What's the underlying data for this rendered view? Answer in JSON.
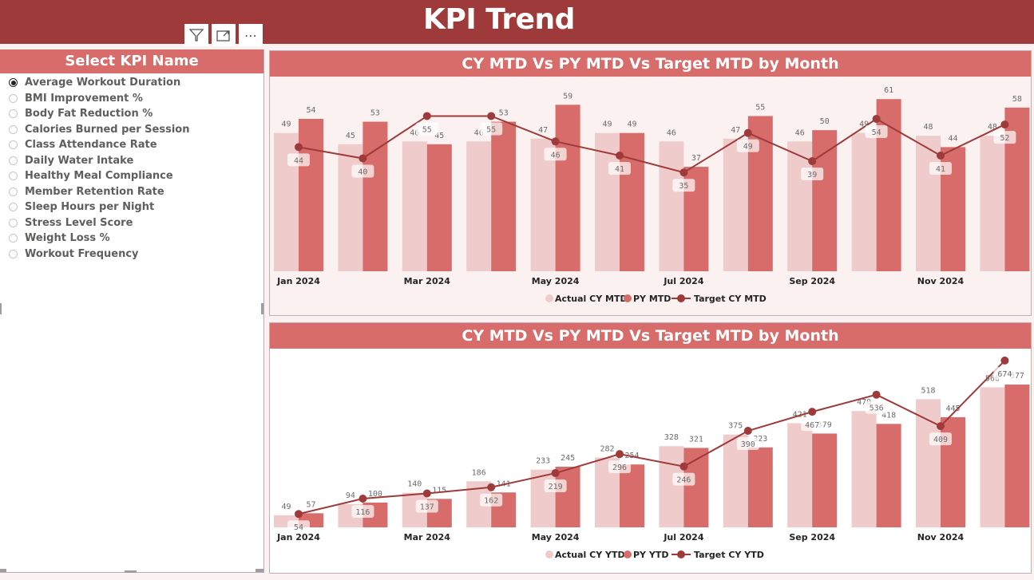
{
  "page": {
    "title": "KPI Trend"
  },
  "toolbar": {
    "icons": [
      "filter-icon",
      "focus-mode-icon",
      "more-options-icon"
    ],
    "more_label": "⋯"
  },
  "slicer": {
    "title": "Select KPI Name",
    "selected": "Average Workout Duration",
    "items": [
      "Average Workout Duration",
      "BMI Improvement %",
      "Body Fat Reduction %",
      "Calories Burned per Session",
      "Class Attendance Rate",
      "Daily Water Intake",
      "Healthy Meal Compliance",
      "Member Retention Rate",
      "Sleep Hours per Night",
      "Stress Level Score",
      "Weight Loss %",
      "Workout Frequency"
    ]
  },
  "colors": {
    "header": "#9e3a3a",
    "title_band": "#d86c6a",
    "actual": "#f0cbcb",
    "py": "#d86c6a",
    "target": "#9e3a3a"
  },
  "chart_data": [
    {
      "type": "bar",
      "title": "CY MTD Vs PY MTD Vs Target MTD by Month",
      "categories": [
        "Jan 2024",
        "Feb 2024",
        "Mar 2024",
        "Apr 2024",
        "May 2024",
        "Jun 2024",
        "Jul 2024",
        "Aug 2024",
        "Sep 2024",
        "Oct 2024",
        "Nov 2024",
        "Dec 2024"
      ],
      "tick_labels": [
        "Jan 2024",
        "",
        "Mar 2024",
        "",
        "May 2024",
        "",
        "Jul 2024",
        "",
        "Sep 2024",
        "",
        "Nov 2024",
        ""
      ],
      "series": [
        {
          "name": "Actual CY MTD",
          "kind": "bar",
          "values": [
            49,
            45,
            46,
            46,
            47,
            49,
            46,
            47,
            46,
            49,
            48,
            48
          ]
        },
        {
          "name": "PY MTD",
          "kind": "bar",
          "values": [
            54,
            53,
            45,
            53,
            59,
            49,
            37,
            55,
            50,
            61,
            44,
            58
          ]
        },
        {
          "name": "Target CY MTD",
          "kind": "line",
          "values": [
            44,
            40,
            55,
            55,
            46,
            41,
            35,
            49,
            39,
            54,
            41,
            52
          ]
        }
      ],
      "ylim": [
        0,
        54
      ],
      "legend": "bottom-center",
      "grid": false
    },
    {
      "type": "bar",
      "title": "CY MTD Vs PY MTD Vs Target MTD by Month",
      "categories": [
        "Jan 2024",
        "Feb 2024",
        "Mar 2024",
        "Apr 2024",
        "May 2024",
        "Jun 2024",
        "Jul 2024",
        "Aug 2024",
        "Sep 2024",
        "Oct 2024",
        "Nov 2024",
        "Dec 2024"
      ],
      "tick_labels": [
        "Jan 2024",
        "",
        "Mar 2024",
        "",
        "May 2024",
        "",
        "Jul 2024",
        "",
        "Sep 2024",
        "",
        "Nov 2024",
        ""
      ],
      "series": [
        {
          "name": "Actual CY YTD",
          "kind": "bar",
          "values": [
            49,
            94,
            140,
            186,
            233,
            282,
            328,
            375,
            421,
            470,
            518,
            566
          ]
        },
        {
          "name": "PY YTD",
          "kind": "bar",
          "values": [
            57,
            100,
            115,
            141,
            245,
            254,
            321,
            323,
            379,
            418,
            445,
            577
          ]
        },
        {
          "name": "Target CY YTD",
          "kind": "line",
          "values": [
            54,
            116,
            137,
            162,
            219,
            296,
            246,
            390,
            467,
            536,
            409,
            674
          ]
        }
      ],
      "ylim": [
        0,
        577
      ],
      "legend": "bottom-center",
      "grid": false
    }
  ]
}
